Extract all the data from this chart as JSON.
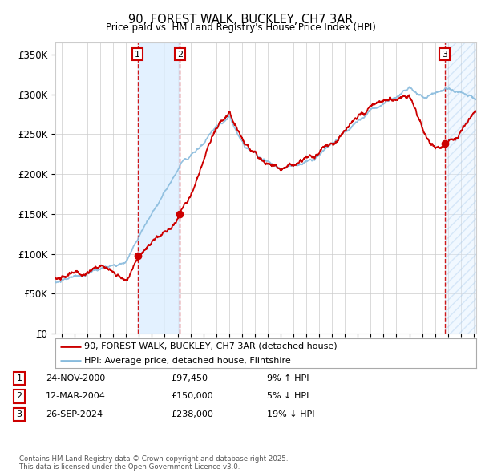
{
  "title": "90, FOREST WALK, BUCKLEY, CH7 3AR",
  "subtitle": "Price paid vs. HM Land Registry's House Price Index (HPI)",
  "ylabel_vals": [
    0,
    50000,
    100000,
    150000,
    200000,
    250000,
    300000,
    350000
  ],
  "ylim": [
    0,
    365000
  ],
  "xlim_start": 1994.5,
  "xlim_end": 2027.2,
  "sale_dates": [
    2000.9,
    2004.18,
    2024.74
  ],
  "sale_prices": [
    97450,
    150000,
    238000
  ],
  "sale_labels": [
    "1",
    "2",
    "3"
  ],
  "sale_info": [
    {
      "num": "1",
      "date": "24-NOV-2000",
      "price": "£97,450",
      "pct": "9% ↑ HPI"
    },
    {
      "num": "2",
      "date": "12-MAR-2004",
      "price": "£150,000",
      "pct": "5% ↓ HPI"
    },
    {
      "num": "3",
      "date": "26-SEP-2024",
      "price": "£238,000",
      "pct": "19% ↓ HPI"
    }
  ],
  "legend_line1": "90, FOREST WALK, BUCKLEY, CH7 3AR (detached house)",
  "legend_line2": "HPI: Average price, detached house, Flintshire",
  "footer": "Contains HM Land Registry data © Crown copyright and database right 2025.\nThis data is licensed under the Open Government Licence v3.0.",
  "line_color_red": "#cc0000",
  "line_color_blue": "#88bbdd",
  "shade_color": "#ddeeff",
  "hatch_color": "#aaccee",
  "box_color_face": "#ffffff",
  "box_color_edge": "#cc0000",
  "grid_color": "#cccccc",
  "background_color": "#ffffff"
}
